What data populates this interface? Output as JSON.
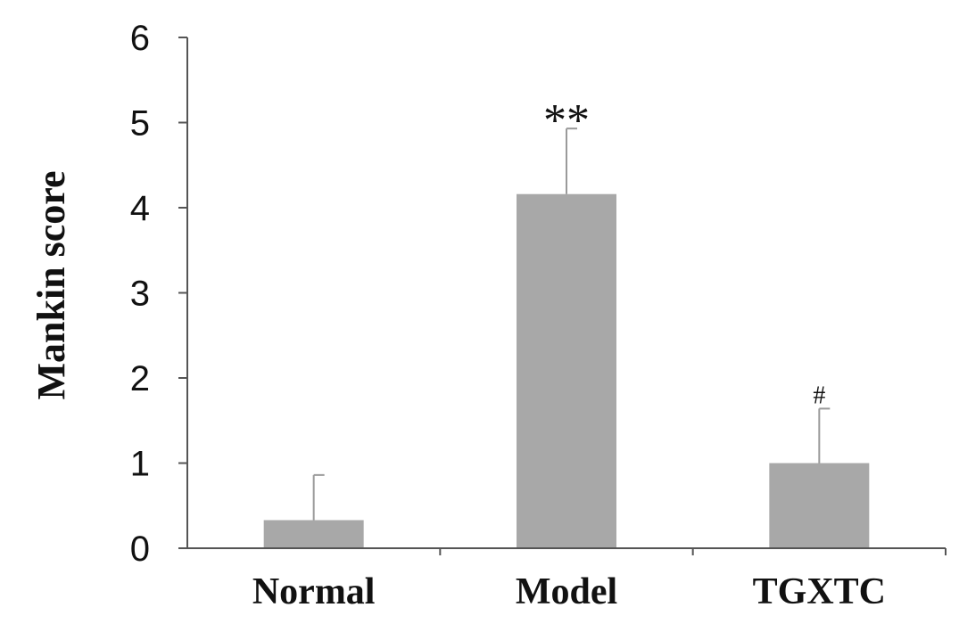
{
  "chart_data": {
    "type": "bar",
    "categories": [
      "Normal",
      "Model",
      "TGXTC"
    ],
    "values": [
      0.33,
      4.16,
      1.0
    ],
    "errors": [
      0.53,
      0.77,
      0.64
    ],
    "annotations": [
      "",
      "**",
      "#"
    ],
    "title": "",
    "xlabel": "",
    "ylabel": "Mankin score",
    "ylim": [
      0,
      6
    ],
    "yticks": [
      "0",
      "1",
      "2",
      "3",
      "4",
      "5",
      "6"
    ],
    "grid": false,
    "legend": "none",
    "colors": {
      "bar": "#a8a8a8",
      "axis": "#555555",
      "error": "#9a9a9a"
    }
  }
}
